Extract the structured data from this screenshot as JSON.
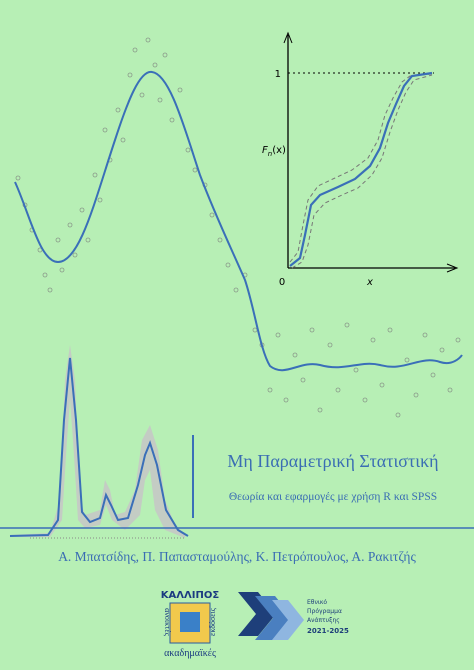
{
  "title": "Μη Παραμετρική Στατιστική",
  "subtitle": "Θεωρία και εφαρμογές με χρήση R και SPSS",
  "authors": "Α. Μπατσίδης, Π. Παπασταμούλης, Κ. Πετρόπουλος, Α. Ρακιτζής",
  "inset": {
    "one": "1",
    "zero": "0",
    "x": "x",
    "f": "F",
    "sub": "n",
    "arg": "(x)"
  },
  "kallipos": {
    "name": "ΚΑΛΛΙΠΟΣ",
    "line1": "ανοικτές",
    "line2": "ακαδημαϊκές",
    "line3": "εκδόσεις"
  },
  "program": {
    "line1": "Εθνικό",
    "line2": "Πρόγραμμα",
    "line3": "Ανάπτυξης",
    "years": "2021-2025"
  }
}
